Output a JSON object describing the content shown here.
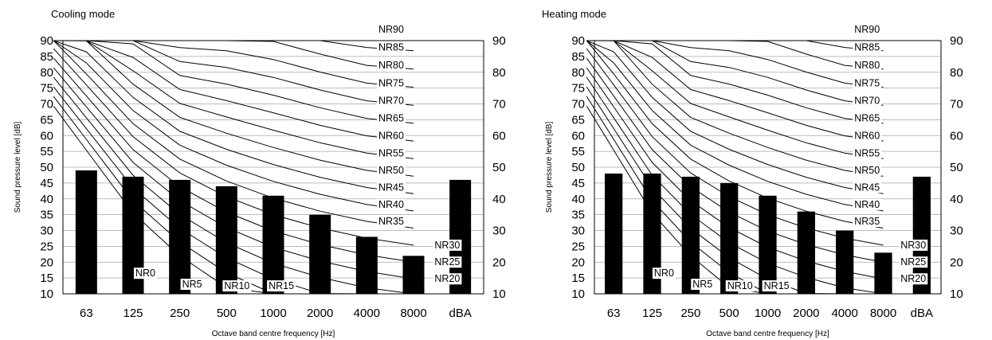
{
  "chart_data": [
    {
      "type": "bar",
      "title": "Cooling mode",
      "xlabel": "Octave band centre frequency [Hz]",
      "ylabel": "Sound pressure level [dB]",
      "ylim": [
        10,
        90
      ],
      "yticks": [
        10,
        15,
        20,
        25,
        30,
        35,
        40,
        45,
        50,
        55,
        60,
        65,
        70,
        75,
        80,
        85,
        90
      ],
      "yticks_right": [
        10,
        20,
        30,
        40,
        50,
        60,
        70,
        80,
        90
      ],
      "categories": [
        "63",
        "125",
        "250",
        "500",
        "1000",
        "2000",
        "4000",
        "8000",
        "dBA"
      ],
      "values": [
        49,
        47,
        46,
        44,
        41,
        35,
        28,
        22,
        46
      ],
      "grid": true,
      "nr_curves": [
        "NR0",
        "NR5",
        "NR10",
        "NR15",
        "NR20",
        "NR25",
        "NR30",
        "NR35",
        "NR40",
        "NR45",
        "NR50",
        "NR55",
        "NR60",
        "NR65",
        "NR70",
        "NR75",
        "NR80",
        "NR85",
        "NR90"
      ]
    },
    {
      "type": "bar",
      "title": "Heating mode",
      "xlabel": "Octave band centre frequency [Hz]",
      "ylabel": "Sound pressure level [dB]",
      "ylim": [
        10,
        90
      ],
      "yticks": [
        10,
        15,
        20,
        25,
        30,
        35,
        40,
        45,
        50,
        55,
        60,
        65,
        70,
        75,
        80,
        85,
        90
      ],
      "yticks_right": [
        10,
        20,
        30,
        40,
        50,
        60,
        70,
        80,
        90
      ],
      "categories": [
        "63",
        "125",
        "250",
        "500",
        "1000",
        "2000",
        "4000",
        "8000",
        "dBA"
      ],
      "values": [
        48,
        48,
        47,
        45,
        41,
        36,
        30,
        23,
        47
      ],
      "grid": true,
      "nr_curves": [
        "NR0",
        "NR5",
        "NR10",
        "NR15",
        "NR20",
        "NR25",
        "NR30",
        "NR35",
        "NR40",
        "NR45",
        "NR50",
        "NR55",
        "NR60",
        "NR65",
        "NR70",
        "NR75",
        "NR80",
        "NR85",
        "NR90"
      ]
    }
  ]
}
